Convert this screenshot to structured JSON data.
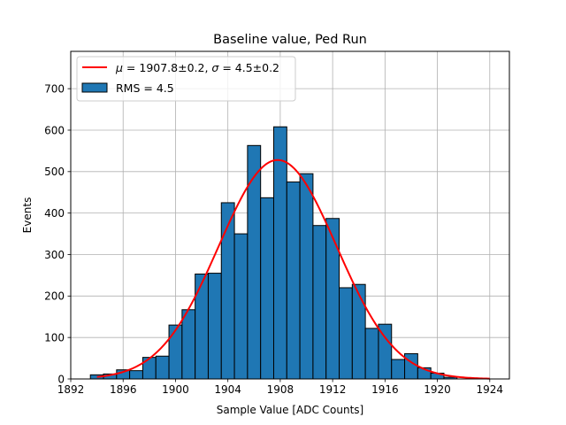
{
  "chart_data": {
    "type": "bar",
    "title": "Baseline value, Ped Run",
    "xlabel": "Sample Value [ADC Counts]",
    "ylabel": "Events",
    "xlim": [
      1892,
      1925.5
    ],
    "ylim": [
      0,
      790
    ],
    "xticks": [
      "1892",
      "1896",
      "1900",
      "1904",
      "1908",
      "1912",
      "1916",
      "1920",
      "1924"
    ],
    "yticks": [
      "0",
      "100",
      "200",
      "300",
      "400",
      "500",
      "600",
      "700"
    ],
    "grid": true,
    "legend_position": "top-left",
    "histogram": {
      "name": "RMS = 4.5",
      "color": "#1f77b4",
      "edge_color": "#000000",
      "bin_edges": [
        1893.5,
        1894.5,
        1895.5,
        1896.5,
        1897.5,
        1898.5,
        1899.5,
        1900.5,
        1901.5,
        1902.5,
        1903.5,
        1904.5,
        1905.5,
        1906.5,
        1907.5,
        1908.5,
        1909.5,
        1910.5,
        1911.5,
        1912.5,
        1913.5,
        1914.5,
        1915.5,
        1916.5,
        1917.5,
        1918.5,
        1919.5,
        1920.5,
        1921.5
      ],
      "counts": [
        10,
        12,
        22,
        20,
        52,
        55,
        130,
        167,
        253,
        255,
        425,
        350,
        563,
        437,
        608,
        475,
        495,
        370,
        387,
        220,
        228,
        122,
        132,
        47,
        61,
        27,
        14,
        4
      ]
    },
    "fit": {
      "name": "$\\mu = 1907.8 \\pm 0.2$, $\\sigma = 4.5 \\pm 0.2$",
      "color": "#ff0000",
      "mu": 1907.8,
      "sigma": 4.5,
      "amplitude": 528,
      "x_range": [
        1894,
        1924
      ]
    }
  }
}
